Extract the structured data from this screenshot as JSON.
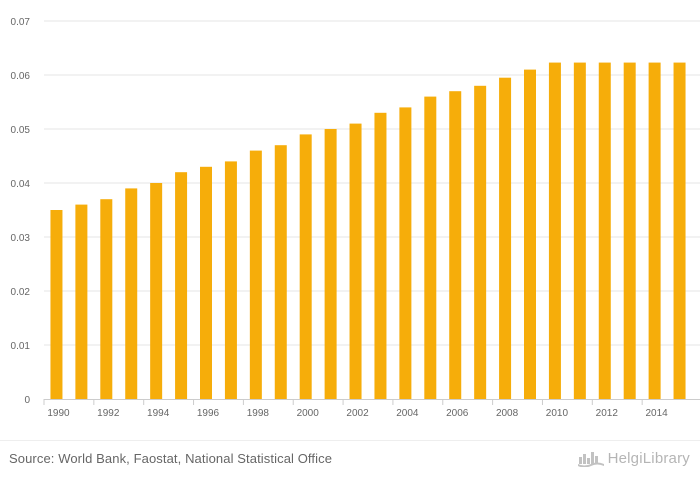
{
  "chart_data": {
    "type": "bar",
    "title": "",
    "xlabel": "",
    "ylabel": "",
    "categories": [
      "1990",
      "1991",
      "1992",
      "1993",
      "1994",
      "1995",
      "1996",
      "1997",
      "1998",
      "1999",
      "2000",
      "2001",
      "2002",
      "2003",
      "2004",
      "2005",
      "2006",
      "2007",
      "2008",
      "2009",
      "2010",
      "2011",
      "2012",
      "2013",
      "2014",
      "2015"
    ],
    "values": [
      0.035,
      0.036,
      0.037,
      0.039,
      0.04,
      0.042,
      0.043,
      0.044,
      0.046,
      0.047,
      0.049,
      0.05,
      0.051,
      0.053,
      0.054,
      0.056,
      0.057,
      0.058,
      0.0595,
      0.061,
      0.0623,
      0.0623,
      0.0623,
      0.0623,
      0.0623,
      0.0623
    ],
    "ylim": [
      0,
      0.07
    ],
    "y_ticks": [
      "0",
      "0.01",
      "0.02",
      "0.03",
      "0.04",
      "0.05",
      "0.06",
      "0.07"
    ],
    "x_tick_labels": [
      "1990",
      "1992",
      "1994",
      "1996",
      "1998",
      "2000",
      "2002",
      "2004",
      "2006",
      "2008",
      "2010",
      "2012",
      "2014"
    ],
    "grid": true,
    "bar_color": "#f6ad0a",
    "grid_color": "#e6e6e6"
  },
  "footer": {
    "source": "Source: World Bank, Faostat, National Statistical Office",
    "brand": "HelgiLibrary",
    "brand_icon": "helgi-library-logo-icon"
  }
}
